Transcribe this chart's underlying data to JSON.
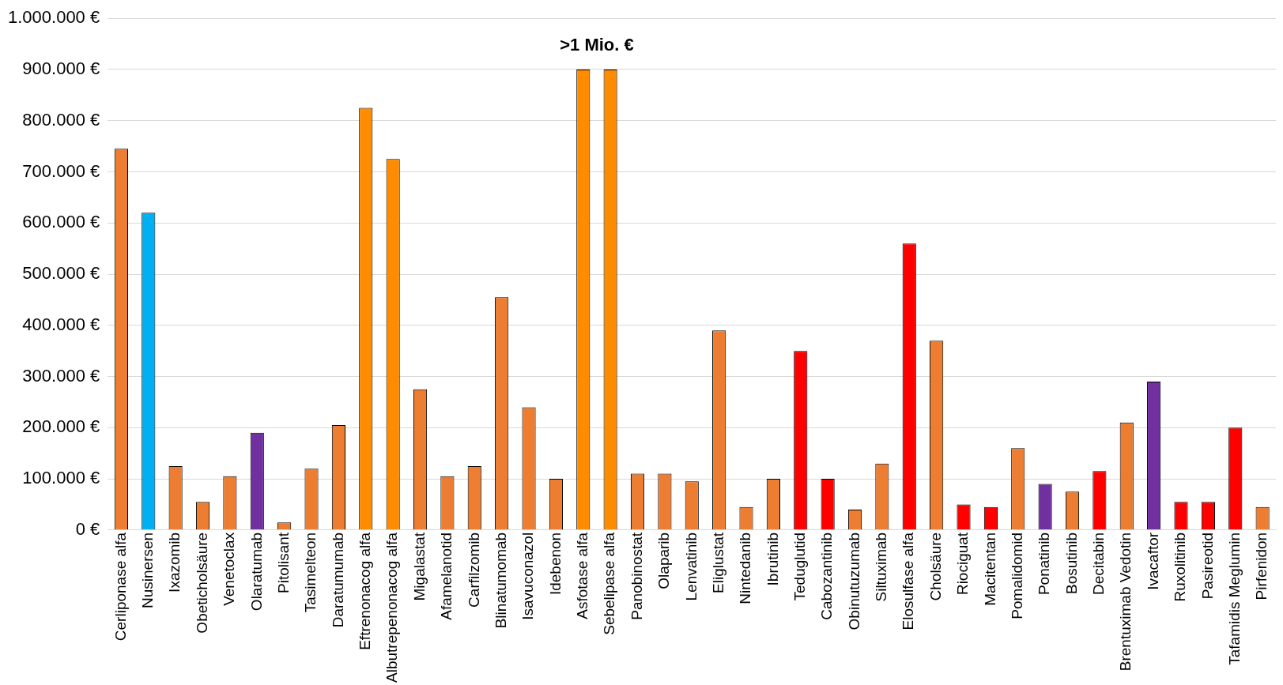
{
  "chart_data": {
    "type": "bar",
    "categories": [
      "Cerliponase alfa",
      "Nusinersen",
      "Ixazomib",
      "Obeticholsäure",
      "Venetoclax",
      "Olaratumab",
      "Pitolisant",
      "Tasimelteon",
      "Daratumumab",
      "Eftrenonacog alfa",
      "Albutrepenonacog alfa",
      "Migalastat",
      "Afamelanotid",
      "Carfilzomib",
      "Blinatumomab",
      "Isavuconazol",
      "Idebenon",
      "Asfotase alfa",
      "Sebelipase alfa",
      "Panobinostat",
      "Olaparib",
      "Lenvatinib",
      "Eliglustat",
      "Nintedanib",
      "Ibrutinib",
      "Teduglutid",
      "Cabozantinib",
      "Obinutuzumab",
      "Siltuximab",
      "Elosulfase alfa",
      "Cholsäure",
      "Riociguat",
      "Macitentan",
      "Pomalidomid",
      "Ponatinib",
      "Bosutinib",
      "Decitabin",
      "Brentuximab Vedotin",
      "Ivacaftor",
      "Ruxolitinib",
      "Pasireotid",
      "Tafamidis Meglumin",
      "Pirfenidon"
    ],
    "values": [
      745000,
      620000,
      125000,
      55000,
      105000,
      190000,
      15000,
      120000,
      205000,
      825000,
      725000,
      275000,
      105000,
      125000,
      455000,
      240000,
      100000,
      900000,
      900000,
      110000,
      110000,
      95000,
      390000,
      45000,
      100000,
      350000,
      100000,
      40000,
      130000,
      560000,
      370000,
      50000,
      45000,
      160000,
      90000,
      75000,
      115000,
      210000,
      290000,
      55000,
      55000,
      200000,
      45000
    ],
    "colors": [
      "#ed7d31",
      "#00b0f0",
      "#ed7d31",
      "#ed7d31",
      "#ed7d31",
      "#7030a0",
      "#ed7d31",
      "#ed7d31",
      "#ed7d31",
      "#ff8c00",
      "#ff8c00",
      "#ed7d31",
      "#ed7d31",
      "#ed7d31",
      "#ed7d31",
      "#ed7d31",
      "#ed7d31",
      "#ff8c00",
      "#ff8c00",
      "#ed7d31",
      "#ed7d31",
      "#ed7d31",
      "#ed7d31",
      "#ed7d31",
      "#ed7d31",
      "#ff0000",
      "#ff0000",
      "#ed7d31",
      "#ed7d31",
      "#ff0000",
      "#ed7d31",
      "#ff0000",
      "#ff0000",
      "#ed7d31",
      "#7030a0",
      "#ed7d31",
      "#ff0000",
      "#ed7d31",
      "#7030a0",
      "#ff0000",
      "#ff0000",
      "#ff0000",
      "#ed7d31"
    ],
    "ylim": [
      0,
      1000000
    ],
    "yticks": [
      {
        "value": 0,
        "label": "0 €"
      },
      {
        "value": 100000,
        "label": "100.000 €"
      },
      {
        "value": 200000,
        "label": "200.000 €"
      },
      {
        "value": 300000,
        "label": "300.000 €"
      },
      {
        "value": 400000,
        "label": "400.000 €"
      },
      {
        "value": 500000,
        "label": "500.000 €"
      },
      {
        "value": 600000,
        "label": "600.000 €"
      },
      {
        "value": 700000,
        "label": "700.000 €"
      },
      {
        "value": 800000,
        "label": "800.000 €"
      },
      {
        "value": 900000,
        "label": "900.000 €"
      },
      {
        "value": 1000000,
        "label": "1.000.000 €"
      }
    ],
    "grid": "y",
    "annotations": [
      {
        "text": ">1 Mio. €",
        "x": "Asfotase alfa",
        "y": 900000
      }
    ]
  }
}
